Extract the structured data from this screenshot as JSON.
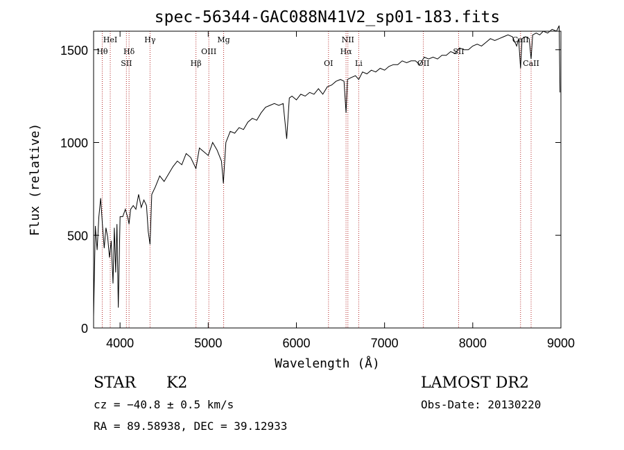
{
  "chart_data": {
    "type": "line",
    "title": "spec-56344-GAC088N41V2_sp01-183.fits",
    "xlabel": "Wavelength (Å)",
    "ylabel": "Flux (relative)",
    "xlim": [
      3700,
      9000
    ],
    "ylim": [
      0,
      1600
    ],
    "x_ticks": [
      4000,
      5000,
      6000,
      7000,
      8000,
      9000
    ],
    "y_ticks": [
      0,
      500,
      1000,
      1500
    ],
    "grid": false,
    "series": [
      {
        "color": "#000000",
        "points": [
          [
            3700,
            60
          ],
          [
            3720,
            550
          ],
          [
            3740,
            420
          ],
          [
            3760,
            600
          ],
          [
            3780,
            700
          ],
          [
            3800,
            560
          ],
          [
            3820,
            430
          ],
          [
            3840,
            540
          ],
          [
            3860,
            490
          ],
          [
            3880,
            380
          ],
          [
            3900,
            470
          ],
          [
            3920,
            240
          ],
          [
            3935,
            540
          ],
          [
            3950,
            300
          ],
          [
            3965,
            560
          ],
          [
            3980,
            110
          ],
          [
            4000,
            600
          ],
          [
            4030,
            600
          ],
          [
            4060,
            640
          ],
          [
            4090,
            590
          ],
          [
            4102,
            560
          ],
          [
            4120,
            640
          ],
          [
            4150,
            660
          ],
          [
            4180,
            640
          ],
          [
            4210,
            720
          ],
          [
            4240,
            650
          ],
          [
            4270,
            690
          ],
          [
            4300,
            660
          ],
          [
            4320,
            520
          ],
          [
            4340,
            450
          ],
          [
            4360,
            720
          ],
          [
            4400,
            760
          ],
          [
            4450,
            820
          ],
          [
            4500,
            790
          ],
          [
            4550,
            830
          ],
          [
            4600,
            870
          ],
          [
            4650,
            900
          ],
          [
            4700,
            880
          ],
          [
            4750,
            940
          ],
          [
            4800,
            920
          ],
          [
            4861,
            860
          ],
          [
            4900,
            970
          ],
          [
            4950,
            950
          ],
          [
            5000,
            930
          ],
          [
            5050,
            1000
          ],
          [
            5100,
            960
          ],
          [
            5150,
            900
          ],
          [
            5172,
            780
          ],
          [
            5183,
            870
          ],
          [
            5200,
            1000
          ],
          [
            5250,
            1060
          ],
          [
            5300,
            1050
          ],
          [
            5350,
            1080
          ],
          [
            5400,
            1070
          ],
          [
            5450,
            1110
          ],
          [
            5500,
            1130
          ],
          [
            5550,
            1120
          ],
          [
            5600,
            1160
          ],
          [
            5650,
            1190
          ],
          [
            5700,
            1200
          ],
          [
            5750,
            1210
          ],
          [
            5800,
            1200
          ],
          [
            5850,
            1210
          ],
          [
            5890,
            1020
          ],
          [
            5920,
            1240
          ],
          [
            5950,
            1250
          ],
          [
            6000,
            1230
          ],
          [
            6050,
            1260
          ],
          [
            6100,
            1250
          ],
          [
            6150,
            1270
          ],
          [
            6200,
            1260
          ],
          [
            6250,
            1290
          ],
          [
            6300,
            1260
          ],
          [
            6350,
            1300
          ],
          [
            6400,
            1310
          ],
          [
            6450,
            1330
          ],
          [
            6500,
            1340
          ],
          [
            6540,
            1330
          ],
          [
            6563,
            1160
          ],
          [
            6580,
            1340
          ],
          [
            6620,
            1350
          ],
          [
            6670,
            1360
          ],
          [
            6707,
            1340
          ],
          [
            6750,
            1380
          ],
          [
            6800,
            1370
          ],
          [
            6850,
            1390
          ],
          [
            6900,
            1380
          ],
          [
            6950,
            1400
          ],
          [
            7000,
            1390
          ],
          [
            7050,
            1410
          ],
          [
            7100,
            1420
          ],
          [
            7150,
            1420
          ],
          [
            7200,
            1440
          ],
          [
            7250,
            1430
          ],
          [
            7300,
            1440
          ],
          [
            7350,
            1440
          ],
          [
            7400,
            1420
          ],
          [
            7450,
            1460
          ],
          [
            7500,
            1450
          ],
          [
            7550,
            1460
          ],
          [
            7600,
            1450
          ],
          [
            7650,
            1470
          ],
          [
            7700,
            1470
          ],
          [
            7750,
            1490
          ],
          [
            7800,
            1480
          ],
          [
            7850,
            1510
          ],
          [
            7900,
            1500
          ],
          [
            7950,
            1500
          ],
          [
            8000,
            1520
          ],
          [
            8050,
            1530
          ],
          [
            8100,
            1520
          ],
          [
            8150,
            1540
          ],
          [
            8200,
            1560
          ],
          [
            8250,
            1550
          ],
          [
            8300,
            1560
          ],
          [
            8350,
            1570
          ],
          [
            8400,
            1580
          ],
          [
            8450,
            1570
          ],
          [
            8498,
            1520
          ],
          [
            8520,
            1560
          ],
          [
            8542,
            1400
          ],
          [
            8560,
            1560
          ],
          [
            8600,
            1570
          ],
          [
            8640,
            1560
          ],
          [
            8662,
            1450
          ],
          [
            8680,
            1580
          ],
          [
            8720,
            1590
          ],
          [
            8760,
            1580
          ],
          [
            8800,
            1600
          ],
          [
            8850,
            1590
          ],
          [
            8900,
            1610
          ],
          [
            8950,
            1600
          ],
          [
            8980,
            1630
          ],
          [
            8990,
            1270
          ]
        ]
      }
    ],
    "line_markers": [
      {
        "wavelength": 3798,
        "label": "Hθ",
        "row": 1
      },
      {
        "wavelength": 3889,
        "label": "HeI",
        "row": 0
      },
      {
        "wavelength": 4072,
        "label": "SII",
        "row": 2
      },
      {
        "wavelength": 4102,
        "label": "Hδ",
        "row": 1
      },
      {
        "wavelength": 4340,
        "label": "Hγ",
        "row": 0
      },
      {
        "wavelength": 4861,
        "label": "Hβ",
        "row": 2
      },
      {
        "wavelength": 5007,
        "label": "OIII",
        "row": 1
      },
      {
        "wavelength": 5175,
        "label": "Mg",
        "row": 0
      },
      {
        "wavelength": 6364,
        "label": "OI",
        "row": 2
      },
      {
        "wavelength": 6563,
        "label": "Hα",
        "row": 1
      },
      {
        "wavelength": 6584,
        "label": "NII",
        "row": 0
      },
      {
        "wavelength": 6707,
        "label": "Li",
        "row": 2
      },
      {
        "wavelength": 7440,
        "label": "OII",
        "row": 2
      },
      {
        "wavelength": 7840,
        "label": "SII",
        "row": 1
      },
      {
        "wavelength": 8542,
        "label": "CaII",
        "row": 0
      },
      {
        "wavelength": 8662,
        "label": "CaII",
        "row": 2
      }
    ]
  },
  "info": {
    "class_label": "STAR",
    "subclass_label": "K2",
    "cz_text": "cz = −40.8 ± 0.5 km/s",
    "coords_text": "RA =  89.58938, DEC =  39.12933",
    "survey_label": "LAMOST DR2",
    "obs_date_text": "Obs-Date: 20130220"
  }
}
